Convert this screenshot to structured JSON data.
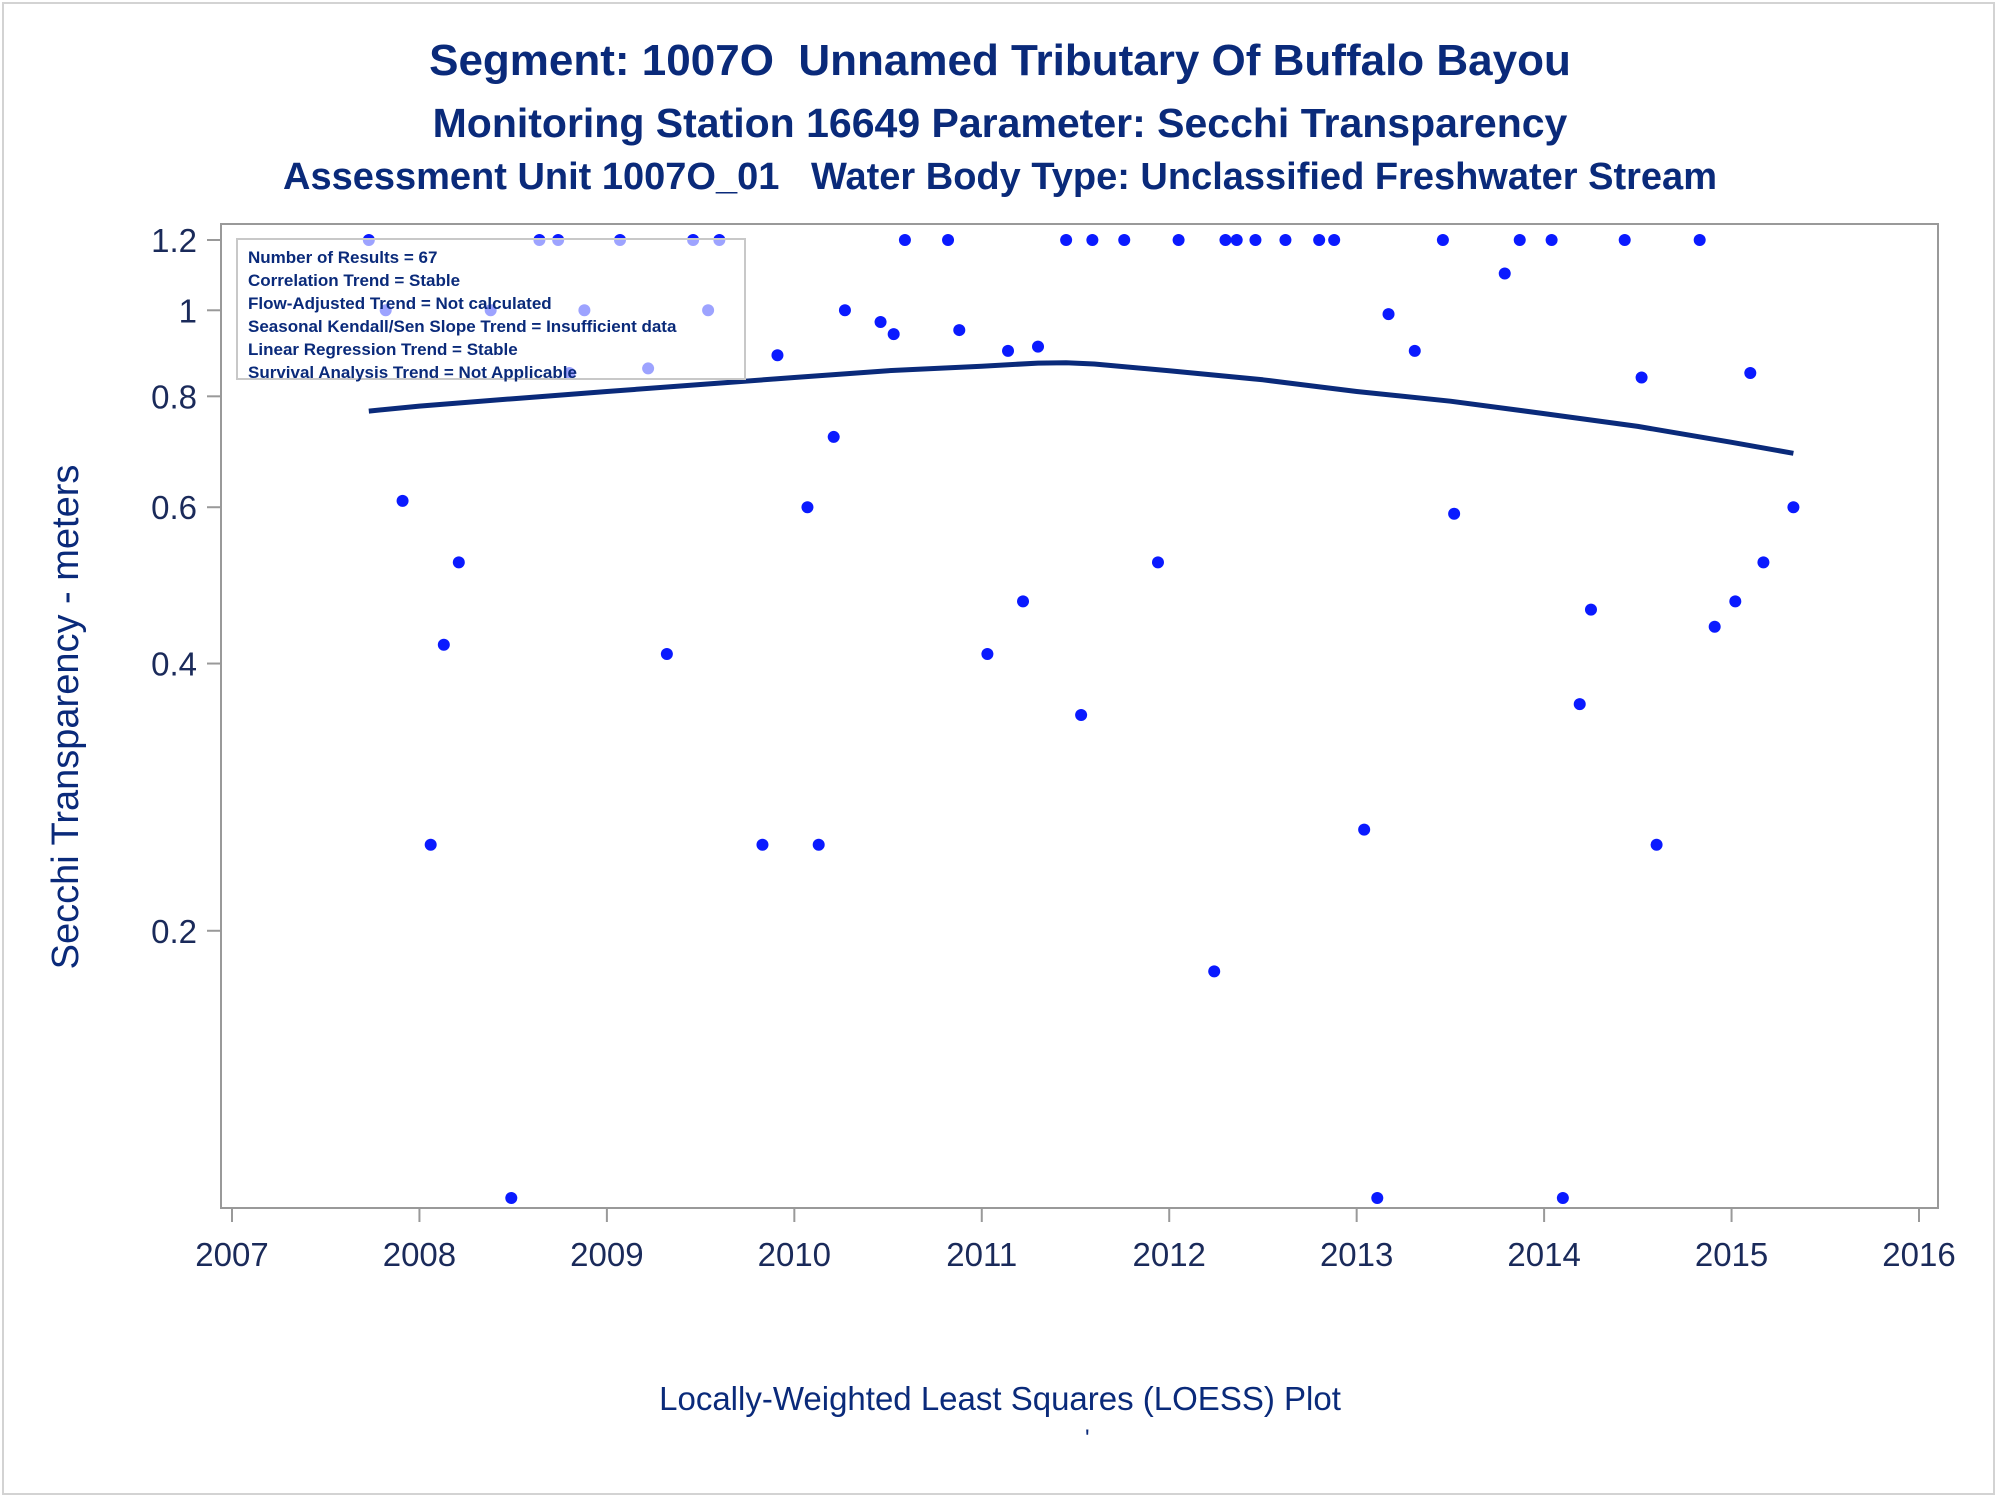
{
  "titles": {
    "line1": "Segment: 1007O  Unnamed Tributary Of Buffalo Bayou",
    "line2": "Monitoring Station 16649 Parameter: Secchi Transparency",
    "line3": "Assessment Unit 1007O_01   Water Body Type: Unclassified Freshwater Stream"
  },
  "stats_box": [
    "Number of Results = 67",
    "Correlation Trend = Stable",
    "Flow-Adjusted Trend = Not calculated",
    "Seasonal Kendall/Sen Slope Trend = Insufficient data",
    "Linear Regression Trend = Stable",
    "Survival Analysis Trend = Not Applicable"
  ],
  "footnote": "Locally-Weighted Least Squares (LOESS) Plot",
  "footnote_mark": "'",
  "colors": {
    "points": "#0a1aff",
    "loess": "#0a2a7a",
    "text": "#0a2a7a",
    "axis": "#999999"
  },
  "chart_data": {
    "type": "scatter",
    "ylabel": "Secchi Transparency - meters",
    "xlabel": "",
    "y_scale": "log",
    "xlim": [
      2007,
      2016
    ],
    "ylim": [
      0.1,
      1.2
    ],
    "x_ticks": [
      "2007",
      "2008",
      "2009",
      "2010",
      "2011",
      "2012",
      "2013",
      "2014",
      "2015",
      "2016"
    ],
    "y_ticks": [
      "0.2",
      "0.4",
      "0.6",
      "0.8",
      "1",
      "1.2"
    ],
    "series": [
      {
        "kind": "points",
        "x": [
          2007.73,
          2007.82,
          2007.91,
          2008.06,
          2008.13,
          2008.21,
          2008.38,
          2008.49,
          2008.64,
          2008.74,
          2008.8,
          2008.88,
          2009.07,
          2009.22,
          2009.32,
          2009.46,
          2009.54,
          2009.6,
          2009.83,
          2009.91,
          2010.07,
          2010.13,
          2010.21,
          2010.27,
          2010.46,
          2010.53,
          2010.59,
          2010.82,
          2010.88,
          2011.03,
          2011.14,
          2011.22,
          2011.3,
          2011.45,
          2011.53,
          2011.59,
          2011.76,
          2011.94,
          2012.05,
          2012.24,
          2012.3,
          2012.36,
          2012.46,
          2012.62,
          2012.8,
          2012.88,
          2013.04,
          2013.11,
          2013.17,
          2013.31,
          2013.46,
          2013.52,
          2013.79,
          2013.87,
          2014.04,
          2014.1,
          2014.19,
          2014.25,
          2014.43,
          2014.52,
          2014.6,
          2014.83,
          2014.91,
          2015.02,
          2015.1,
          2015.17,
          2015.33
        ],
        "y": [
          1.2,
          1.0,
          0.61,
          0.25,
          0.42,
          0.52,
          1.0,
          0.1,
          1.2,
          1.2,
          0.85,
          1.0,
          1.2,
          0.86,
          0.41,
          1.2,
          1.0,
          1.2,
          0.25,
          0.89,
          0.6,
          0.25,
          0.72,
          1.0,
          0.97,
          0.94,
          1.2,
          1.2,
          0.95,
          0.41,
          0.9,
          0.47,
          0.91,
          1.2,
          0.35,
          1.2,
          1.2,
          0.52,
          1.2,
          0.18,
          1.2,
          1.2,
          1.2,
          1.2,
          1.2,
          1.2,
          0.26,
          0.1,
          0.99,
          0.9,
          1.2,
          0.59,
          1.1,
          1.2,
          1.2,
          0.1,
          0.36,
          0.46,
          1.2,
          0.84,
          0.25,
          1.2,
          0.44,
          0.47,
          0.85,
          0.52,
          0.6
        ]
      },
      {
        "kind": "loess",
        "x": [
          2007.73,
          2008.0,
          2008.5,
          2009.0,
          2009.5,
          2010.0,
          2010.5,
          2011.0,
          2011.3,
          2011.45,
          2011.6,
          2012.0,
          2012.5,
          2013.0,
          2013.5,
          2014.0,
          2014.5,
          2015.0,
          2015.33
        ],
        "y": [
          0.77,
          0.78,
          0.795,
          0.81,
          0.825,
          0.84,
          0.855,
          0.865,
          0.872,
          0.873,
          0.87,
          0.855,
          0.835,
          0.81,
          0.79,
          0.765,
          0.74,
          0.71,
          0.69
        ]
      }
    ]
  }
}
